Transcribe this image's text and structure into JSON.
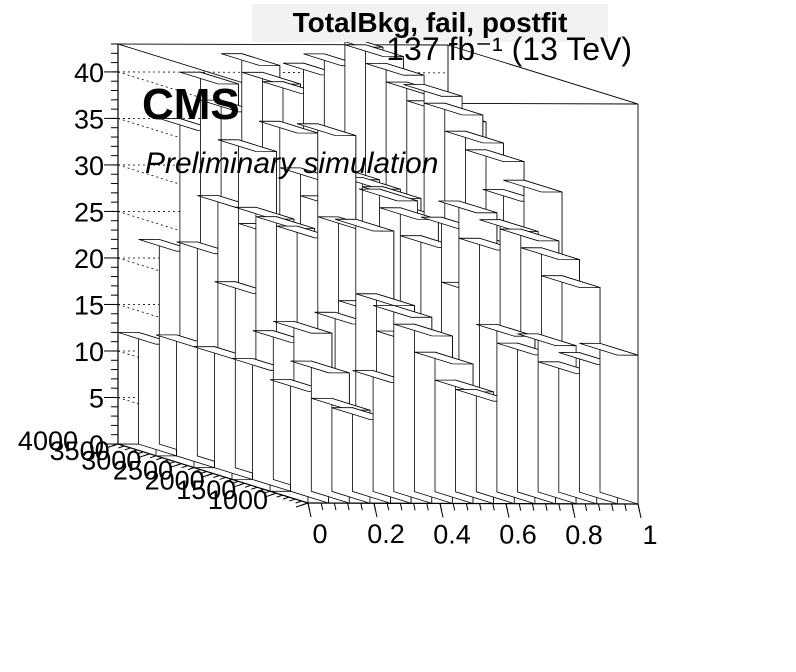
{
  "title": "TotalBkg, fail, postfit",
  "lumi_label": "137 fb⁻¹ (13 TeV)",
  "experiment": "CMS",
  "experiment_sub": "Preliminary simulation",
  "chart_data": {
    "type": "lego3d",
    "title": "TotalBkg, fail, postfit",
    "x_axis": {
      "range": [
        0,
        1
      ],
      "ticks": [
        "0",
        "0.2",
        "0.4",
        "0.6",
        "0.8",
        "1"
      ],
      "label": ""
    },
    "y_axis": {
      "range": [
        1000,
        4000
      ],
      "ticks": [
        "1000",
        "1500",
        "2000",
        "2500",
        "3000",
        "3500",
        "4000"
      ],
      "label": ""
    },
    "z_axis": {
      "range": [
        0,
        43
      ],
      "ticks": [
        "0",
        "5",
        "10",
        "15",
        "20",
        "25",
        "30",
        "35",
        "40"
      ],
      "label": ""
    },
    "grid": true,
    "x_bins": 16,
    "y_bins": 5,
    "series": [
      {
        "y_bin": 1,
        "values": [
          12,
          14,
          10,
          9,
          13,
          20,
          18,
          15,
          12,
          11,
          18,
          16,
          17,
          14,
          15,
          16
        ]
      },
      {
        "y_bin": 2,
        "values": [
          13,
          16,
          17,
          10,
          18,
          28,
          20,
          16,
          14,
          13,
          30,
          26,
          28,
          27,
          25,
          22
        ]
      },
      {
        "y_bin": 3,
        "values": [
          13,
          20,
          28,
          27,
          26,
          37,
          27,
          18,
          30,
          28,
          25,
          27,
          20,
          25,
          30,
          31
        ]
      },
      {
        "y_bin": 4,
        "values": [
          13,
          23,
          28,
          34,
          25,
          36,
          31,
          28,
          31,
          30,
          29,
          27,
          40,
          38,
          35,
          33
        ]
      },
      {
        "y_bin": 5,
        "values": [
          12,
          22,
          35,
          40,
          37,
          42,
          40,
          39,
          41,
          42,
          44,
          43,
          41,
          39,
          37,
          36
        ]
      }
    ]
  }
}
